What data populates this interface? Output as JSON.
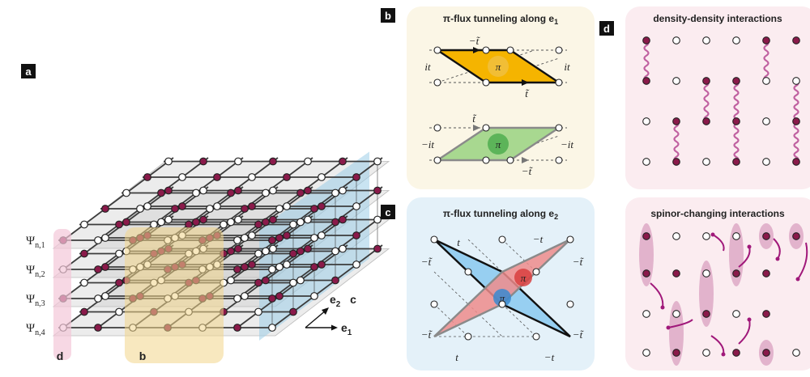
{
  "panels": {
    "a": {
      "label": "a"
    },
    "b": {
      "label": "b",
      "title": "π-flux tunneling along e",
      "title_sub": "1",
      "top_labels": {
        "top": "−t̃",
        "left": "it",
        "right": "it",
        "bottom": "t̃",
        "flux": "π"
      },
      "bottom_labels": {
        "top": "t̃",
        "left": "−it",
        "right": "−it",
        "bottom": "−t̃",
        "flux": "π"
      }
    },
    "c": {
      "label": "c",
      "title": "π-flux tunneling along e",
      "title_sub": "2",
      "labels": {
        "t_top": "t",
        "mt_top": "−t",
        "mtt_left_top": "−t̃",
        "mtt_right_top": "−t̃",
        "mtt_left_bot": "−t̃",
        "mtt_right_bot": "−t̃",
        "t_bot": "t",
        "mt_bot": "−t",
        "flux_blue": "π",
        "flux_red": "π"
      }
    },
    "d": {
      "label": "d",
      "top_title": "density-density interactions",
      "bottom_title": "spinor-changing interactions"
    }
  },
  "lattice": {
    "row_labels": [
      "Ψ",
      "Ψ",
      "Ψ",
      "Ψ"
    ],
    "row_subs": [
      "n,1",
      "n,2",
      "n,3",
      "n,4"
    ],
    "plane_labels": {
      "d": "d",
      "b": "b",
      "c": "c"
    },
    "axes": {
      "e2": "e",
      "e2_sub": "2",
      "e1": "e",
      "e1_sub": "1"
    }
  },
  "colors": {
    "site_filled": "#8a1a4a",
    "site_empty": "#ffffff",
    "grid": "#3c3c3c",
    "plane_grey": "#c8c8c8",
    "plane_yellow": "#f2d68a",
    "plane_blue": "#9ccde8",
    "plane_pink": "#f4c8d8",
    "panel_b_bg": "#fbf6e6",
    "panel_c_bg": "#e4f1f9",
    "panel_d_bg": "#fbecf0",
    "yellow_plaq": "#f5b400",
    "green_plaq": "#a8d890",
    "blue_plaq": "#8ecbef",
    "red_plaq": "#ef8c8c",
    "spring": "#c060a0",
    "arrow": "#a0187a",
    "oval": "#d9a0c0"
  }
}
